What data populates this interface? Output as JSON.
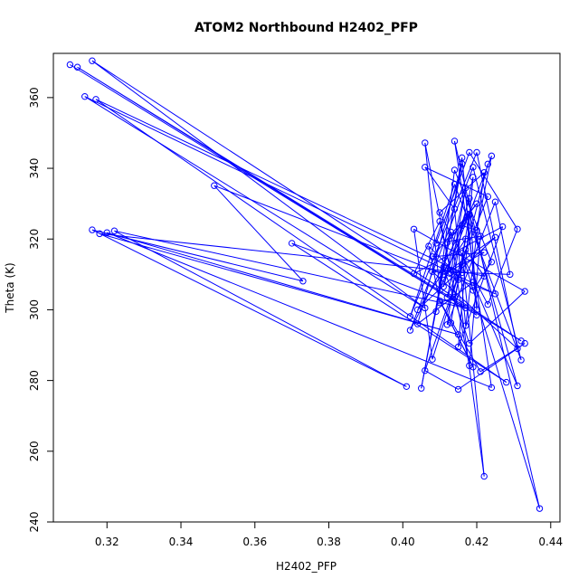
{
  "chart_data": {
    "type": "line",
    "title": "ATOM2 Northbound H2402_PFP",
    "xlabel": "H2402_PFP",
    "ylabel": "Theta (K)",
    "xlim": [
      0.3055,
      0.4425
    ],
    "ylim": [
      240.0,
      372.5
    ],
    "xticks": [
      0.32,
      0.34,
      0.36,
      0.38,
      0.4,
      0.42,
      0.44
    ],
    "xtick_labels": [
      "0.32",
      "0.34",
      "0.36",
      "0.38",
      "0.40",
      "0.42",
      "0.44"
    ],
    "yticks": [
      240,
      260,
      280,
      300,
      320,
      340,
      360
    ],
    "ytick_labels": [
      "240",
      "260",
      "280",
      "300",
      "320",
      "340",
      "360"
    ],
    "grid": false,
    "legend": "none",
    "series": [
      {
        "color": "#0000ff",
        "marker": "open-circle",
        "points": [
          [
            0.31,
            369.3
          ],
          [
            0.42,
            298.5
          ],
          [
            0.312,
            368.6
          ],
          [
            0.432,
            291.2
          ],
          [
            0.316,
            370.4
          ],
          [
            0.406,
            300.5
          ],
          [
            0.314,
            360.3
          ],
          [
            0.425,
            304.5
          ],
          [
            0.349,
            335.1
          ],
          [
            0.373,
            308.1
          ],
          [
            0.316,
            322.6
          ],
          [
            0.401,
            278.3
          ],
          [
            0.322,
            322.3
          ],
          [
            0.417,
            300.5
          ],
          [
            0.37,
            318.8
          ],
          [
            0.428,
            279.5
          ],
          [
            0.317,
            359.5
          ],
          [
            0.416,
            310.5
          ],
          [
            0.318,
            321.5
          ],
          [
            0.415,
            293.0
          ],
          [
            0.32,
            321.8
          ],
          [
            0.424,
            278.0
          ],
          [
            0.414,
            347.7
          ],
          [
            0.437,
            243.8
          ],
          [
            0.416,
            316.0
          ],
          [
            0.422,
            252.9
          ],
          [
            0.413,
            322.0
          ],
          [
            0.405,
            277.8
          ],
          [
            0.416,
            341.3
          ],
          [
            0.404,
            296.0
          ],
          [
            0.419,
            307.8
          ],
          [
            0.431,
            278.5
          ],
          [
            0.418,
            327.1
          ],
          [
            0.402,
            294.2
          ],
          [
            0.419,
            340.3
          ],
          [
            0.432,
            285.8
          ],
          [
            0.414,
            335.5
          ],
          [
            0.402,
            298.1
          ],
          [
            0.42,
            344.5
          ],
          [
            0.431,
            289.0
          ],
          [
            0.408,
            310.8
          ],
          [
            0.429,
            310.0
          ],
          [
            0.425,
            330.5
          ],
          [
            0.412,
            295.8
          ],
          [
            0.416,
            323.8
          ],
          [
            0.42,
            322.5
          ],
          [
            0.424,
            343.5
          ],
          [
            0.41,
            305.5
          ],
          [
            0.406,
            347.2
          ],
          [
            0.418,
            284.2
          ],
          [
            0.421,
            320.8
          ],
          [
            0.409,
            318.8
          ],
          [
            0.418,
            344.5
          ],
          [
            0.431,
            322.8
          ],
          [
            0.423,
            301.5
          ],
          [
            0.41,
            327.5
          ],
          [
            0.422,
            338.8
          ],
          [
            0.417,
            295.5
          ],
          [
            0.414,
            328.5
          ],
          [
            0.406,
            340.3
          ],
          [
            0.423,
            332.0
          ],
          [
            0.412,
            303.5
          ],
          [
            0.419,
            337.5
          ],
          [
            0.415,
            289.5
          ],
          [
            0.427,
            323.5
          ],
          [
            0.403,
            310.2
          ],
          [
            0.41,
            325.0
          ],
          [
            0.413,
            310.5
          ],
          [
            0.417,
            334.5
          ],
          [
            0.411,
            306.5
          ],
          [
            0.418,
            331.5
          ],
          [
            0.42,
            300.0
          ],
          [
            0.416,
            343.0
          ],
          [
            0.409,
            299.5
          ],
          [
            0.414,
            339.5
          ],
          [
            0.424,
            313.5
          ],
          [
            0.419,
            305.5
          ],
          [
            0.407,
            318.0
          ],
          [
            0.41,
            302.0
          ],
          [
            0.414,
            303.5
          ],
          [
            0.417,
            317.0
          ],
          [
            0.422,
            309.5
          ],
          [
            0.411,
            312.0
          ],
          [
            0.418,
            290.5
          ],
          [
            0.433,
            305.2
          ],
          [
            0.403,
            322.8
          ],
          [
            0.408,
            286.0
          ],
          [
            0.416,
            312.8
          ],
          [
            0.406,
            282.8
          ],
          [
            0.415,
            277.5
          ],
          [
            0.433,
            290.5
          ],
          [
            0.421,
            282.5
          ],
          [
            0.41,
            302.5
          ],
          [
            0.419,
            283.8
          ],
          [
            0.413,
            296.3
          ],
          [
            0.417,
            320.0
          ],
          [
            0.404,
            300.0
          ],
          [
            0.425,
            320.5
          ],
          [
            0.411,
            310.0
          ],
          [
            0.422,
            316.2
          ],
          [
            0.408,
            315.0
          ],
          [
            0.42,
            330.0
          ],
          [
            0.412,
            319.0
          ],
          [
            0.418,
            326.8
          ],
          [
            0.415,
            308.5
          ],
          [
            0.423,
            341.2
          ]
        ]
      }
    ]
  }
}
